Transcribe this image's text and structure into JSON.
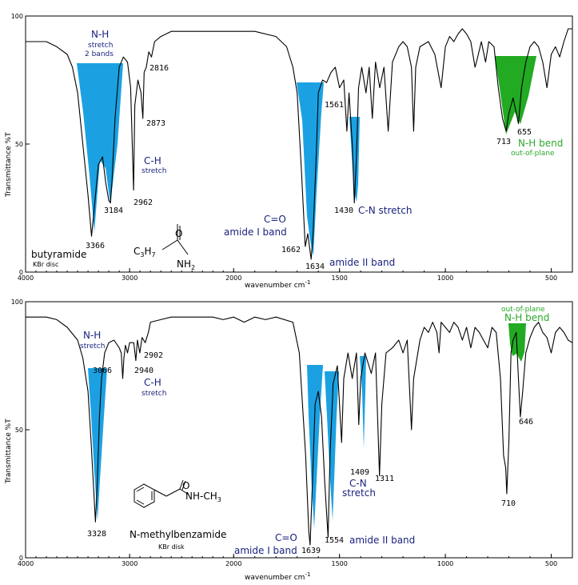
{
  "chart_data": [
    {
      "type": "line",
      "xlabel": "wavenumber cm",
      "xlabel_sup": "-1",
      "ylabel": "Transmittance %T",
      "xlim": [
        4000,
        400
      ],
      "ylim": [
        0,
        100
      ],
      "x_ticks": [
        "4000",
        "3000",
        "2000",
        "1500",
        "1000",
        "500"
      ],
      "y_ticks": [
        "100",
        "50",
        "0"
      ],
      "compound": "butyramide",
      "sample": "KBr disc",
      "formula_left": "C",
      "formula_left_sub": "3",
      "formula_left2": "H",
      "formula_left2_sub": "7",
      "formula_right": "NH",
      "formula_right_sub": "2",
      "formula_o": "O",
      "series": [
        {
          "points": [
            [
              4000,
              90
            ],
            [
              3800,
              90
            ],
            [
              3700,
              88
            ],
            [
              3600,
              85
            ],
            [
              3550,
              80
            ],
            [
              3500,
              70
            ],
            [
              3450,
              50
            ],
            [
              3400,
              30
            ],
            [
              3366,
              14
            ],
            [
              3340,
              25
            ],
            [
              3300,
              42
            ],
            [
              3260,
              45
            ],
            [
              3230,
              35
            ],
            [
              3200,
              28
            ],
            [
              3184,
              27
            ],
            [
              3170,
              35
            ],
            [
              3140,
              60
            ],
            [
              3100,
              80
            ],
            [
              3060,
              84
            ],
            [
              3020,
              82
            ],
            [
              2990,
              72
            ],
            [
              2962,
              32
            ],
            [
              2950,
              65
            ],
            [
              2920,
              75
            ],
            [
              2890,
              70
            ],
            [
              2873,
              60
            ],
            [
              2860,
              78
            ],
            [
              2840,
              80
            ],
            [
              2816,
              86
            ],
            [
              2790,
              84
            ],
            [
              2760,
              90
            ],
            [
              2700,
              92
            ],
            [
              2600,
              94
            ],
            [
              2400,
              94
            ],
            [
              2200,
              94
            ],
            [
              2000,
              94
            ],
            [
              1900,
              94
            ],
            [
              1800,
              92
            ],
            [
              1750,
              88
            ],
            [
              1720,
              80
            ],
            [
              1700,
              70
            ],
            [
              1680,
              40
            ],
            [
              1662,
              10
            ],
            [
              1650,
              15
            ],
            [
              1634,
              5
            ],
            [
              1625,
              15
            ],
            [
              1610,
              45
            ],
            [
              1600,
              70
            ],
            [
              1580,
              75
            ],
            [
              1561,
              74
            ],
            [
              1540,
              78
            ],
            [
              1520,
              80
            ],
            [
              1500,
              72
            ],
            [
              1480,
              75
            ],
            [
              1465,
              55
            ],
            [
              1455,
              70
            ],
            [
              1440,
              50
            ],
            [
              1430,
              27
            ],
            [
              1420,
              45
            ],
            [
              1410,
              72
            ],
            [
              1395,
              80
            ],
            [
              1375,
              70
            ],
            [
              1360,
              80
            ],
            [
              1345,
              60
            ],
            [
              1330,
              82
            ],
            [
              1310,
              72
            ],
            [
              1290,
              80
            ],
            [
              1270,
              55
            ],
            [
              1250,
              82
            ],
            [
              1220,
              88
            ],
            [
              1200,
              90
            ],
            [
              1180,
              88
            ],
            [
              1160,
              80
            ],
            [
              1150,
              55
            ],
            [
              1140,
              80
            ],
            [
              1120,
              88
            ],
            [
              1080,
              90
            ],
            [
              1050,
              85
            ],
            [
              1020,
              72
            ],
            [
              1000,
              88
            ],
            [
              980,
              92
            ],
            [
              960,
              90
            ],
            [
              940,
              93
            ],
            [
              920,
              95
            ],
            [
              900,
              93
            ],
            [
              880,
              90
            ],
            [
              860,
              80
            ],
            [
              850,
              83
            ],
            [
              830,
              90
            ],
            [
              810,
              82
            ],
            [
              795,
              90
            ],
            [
              770,
              88
            ],
            [
              750,
              72
            ],
            [
              730,
              60
            ],
            [
              713,
              55
            ],
            [
              700,
              62
            ],
            [
              680,
              68
            ],
            [
              665,
              62
            ],
            [
              655,
              58
            ],
            [
              640,
              72
            ],
            [
              620,
              82
            ],
            [
              600,
              88
            ],
            [
              580,
              90
            ],
            [
              560,
              88
            ],
            [
              540,
              82
            ],
            [
              520,
              72
            ],
            [
              500,
              85
            ],
            [
              480,
              88
            ],
            [
              460,
              84
            ],
            [
              440,
              90
            ],
            [
              420,
              95
            ],
            [
              400,
              95
            ]
          ]
        }
      ],
      "peaks": [
        {
          "wn": 3366,
          "label": "3366"
        },
        {
          "wn": 3184,
          "label": "3184"
        },
        {
          "wn": 2962,
          "label": "2962"
        },
        {
          "wn": 2873,
          "label": "2873"
        },
        {
          "wn": 2816,
          "label": "2816"
        },
        {
          "wn": 1662,
          "label": "1662"
        },
        {
          "wn": 1634,
          "label": "1634"
        },
        {
          "wn": 1561,
          "label": "1561"
        },
        {
          "wn": 1430,
          "label": "1430"
        },
        {
          "wn": 713,
          "label": "713"
        },
        {
          "wn": 655,
          "label": "655"
        }
      ],
      "bands": [
        {
          "name": "N-H",
          "line2": "stretch",
          "line3": "2 bands",
          "color": "#1ba1e2"
        },
        {
          "name": "C-H",
          "line2": "stretch",
          "color": "#1ba1e2"
        },
        {
          "name": "C=O",
          "line2": "amide I band",
          "color": "#1ba1e2"
        },
        {
          "name": "amide II band",
          "color": "#1ba1e2"
        },
        {
          "name": "C-N stretch",
          "color": "#1ba1e2"
        },
        {
          "name": "N-H bend",
          "line2": "out-of-plane",
          "color": "#22aa22"
        }
      ]
    },
    {
      "type": "line",
      "xlabel": "wavenumber cm",
      "xlabel_sup": "-1",
      "ylabel": "Transmittance %T",
      "xlim": [
        4000,
        400
      ],
      "ylim": [
        0,
        100
      ],
      "x_ticks": [
        "4000",
        "3000",
        "2000",
        "1500",
        "1000",
        "500"
      ],
      "y_ticks": [
        "100",
        "50",
        "0"
      ],
      "compound": "N-methylbenzamide",
      "sample": "KBr disk",
      "formula_right": "NH-CH",
      "formula_right_sub": "3",
      "formula_o": "O",
      "series": [
        {
          "points": [
            [
              4000,
              94
            ],
            [
              3800,
              94
            ],
            [
              3700,
              93
            ],
            [
              3600,
              90
            ],
            [
              3500,
              85
            ],
            [
              3450,
              78
            ],
            [
              3400,
              65
            ],
            [
              3370,
              45
            ],
            [
              3350,
              30
            ],
            [
              3328,
              14
            ],
            [
              3310,
              30
            ],
            [
              3290,
              55
            ],
            [
              3270,
              70
            ],
            [
              3240,
              80
            ],
            [
              3200,
              84
            ],
            [
              3150,
              85
            ],
            [
              3100,
              82
            ],
            [
              3080,
              80
            ],
            [
              3066,
              70
            ],
            [
              3055,
              78
            ],
            [
              3040,
              83
            ],
            [
              3020,
              80
            ],
            [
              3000,
              84
            ],
            [
              2960,
              84
            ],
            [
              2940,
              77
            ],
            [
              2925,
              85
            ],
            [
              2902,
              80
            ],
            [
              2880,
              86
            ],
            [
              2850,
              84
            ],
            [
              2820,
              88
            ],
            [
              2800,
              92
            ],
            [
              2700,
              93
            ],
            [
              2600,
              94
            ],
            [
              2400,
              94
            ],
            [
              2200,
              94
            ],
            [
              2100,
              93
            ],
            [
              2000,
              94
            ],
            [
              1950,
              92
            ],
            [
              1900,
              94
            ],
            [
              1850,
              93
            ],
            [
              1800,
              94
            ],
            [
              1720,
              92
            ],
            [
              1690,
              80
            ],
            [
              1660,
              40
            ],
            [
              1645,
              10
            ],
            [
              1639,
              5
            ],
            [
              1630,
              25
            ],
            [
              1615,
              60
            ],
            [
              1600,
              65
            ],
            [
              1585,
              55
            ],
            [
              1570,
              30
            ],
            [
              1554,
              8
            ],
            [
              1545,
              40
            ],
            [
              1530,
              68
            ],
            [
              1510,
              75
            ],
            [
              1490,
              45
            ],
            [
              1480,
              70
            ],
            [
              1460,
              80
            ],
            [
              1440,
              70
            ],
            [
              1420,
              80
            ],
            [
              1409,
              52
            ],
            [
              1400,
              70
            ],
            [
              1380,
              80
            ],
            [
              1350,
              72
            ],
            [
              1330,
              80
            ],
            [
              1311,
              32
            ],
            [
              1300,
              60
            ],
            [
              1280,
              80
            ],
            [
              1250,
              82
            ],
            [
              1220,
              85
            ],
            [
              1200,
              80
            ],
            [
              1180,
              85
            ],
            [
              1160,
              50
            ],
            [
              1150,
              70
            ],
            [
              1120,
              85
            ],
            [
              1100,
              90
            ],
            [
              1080,
              88
            ],
            [
              1060,
              92
            ],
            [
              1040,
              88
            ],
            [
              1030,
              80
            ],
            [
              1020,
              92
            ],
            [
              1000,
              90
            ],
            [
              980,
              88
            ],
            [
              960,
              92
            ],
            [
              940,
              90
            ],
            [
              920,
              85
            ],
            [
              900,
              90
            ],
            [
              880,
              82
            ],
            [
              860,
              90
            ],
            [
              840,
              88
            ],
            [
              820,
              85
            ],
            [
              800,
              82
            ],
            [
              780,
              90
            ],
            [
              760,
              88
            ],
            [
              740,
              70
            ],
            [
              725,
              40
            ],
            [
              715,
              35
            ],
            [
              710,
              25
            ],
            [
              700,
              45
            ],
            [
              690,
              80
            ],
            [
              680,
              85
            ],
            [
              665,
              88
            ],
            [
              655,
              70
            ],
            [
              646,
              55
            ],
            [
              635,
              65
            ],
            [
              620,
              80
            ],
            [
              600,
              86
            ],
            [
              580,
              90
            ],
            [
              560,
              92
            ],
            [
              540,
              88
            ],
            [
              520,
              86
            ],
            [
              500,
              80
            ],
            [
              480,
              88
            ],
            [
              460,
              90
            ],
            [
              440,
              88
            ],
            [
              420,
              85
            ],
            [
              400,
              84
            ]
          ]
        }
      ],
      "peaks": [
        {
          "wn": 3328,
          "label": "3328"
        },
        {
          "wn": 3066,
          "label": "3066"
        },
        {
          "wn": 2940,
          "label": "2940"
        },
        {
          "wn": 2902,
          "label": "2902"
        },
        {
          "wn": 1639,
          "label": "1639"
        },
        {
          "wn": 1554,
          "label": "1554"
        },
        {
          "wn": 1409,
          "label": "1409"
        },
        {
          "wn": 1311,
          "label": "1311"
        },
        {
          "wn": 710,
          "label": "710"
        },
        {
          "wn": 646,
          "label": "646"
        }
      ],
      "bands": [
        {
          "name": "N-H",
          "line2": "stretch",
          "color": "#1ba1e2"
        },
        {
          "name": "C-H",
          "line2": "stretch",
          "color": "#1ba1e2"
        },
        {
          "name": "C=O",
          "line2": "amide I band",
          "color": "#1ba1e2"
        },
        {
          "name": "amide II band",
          "color": "#1ba1e2"
        },
        {
          "name": "C-N",
          "line2": "stretch",
          "color": "#1ba1e2"
        },
        {
          "name": "N-H bend",
          "line2": "out-of-plane",
          "color": "#22aa22"
        }
      ]
    }
  ]
}
